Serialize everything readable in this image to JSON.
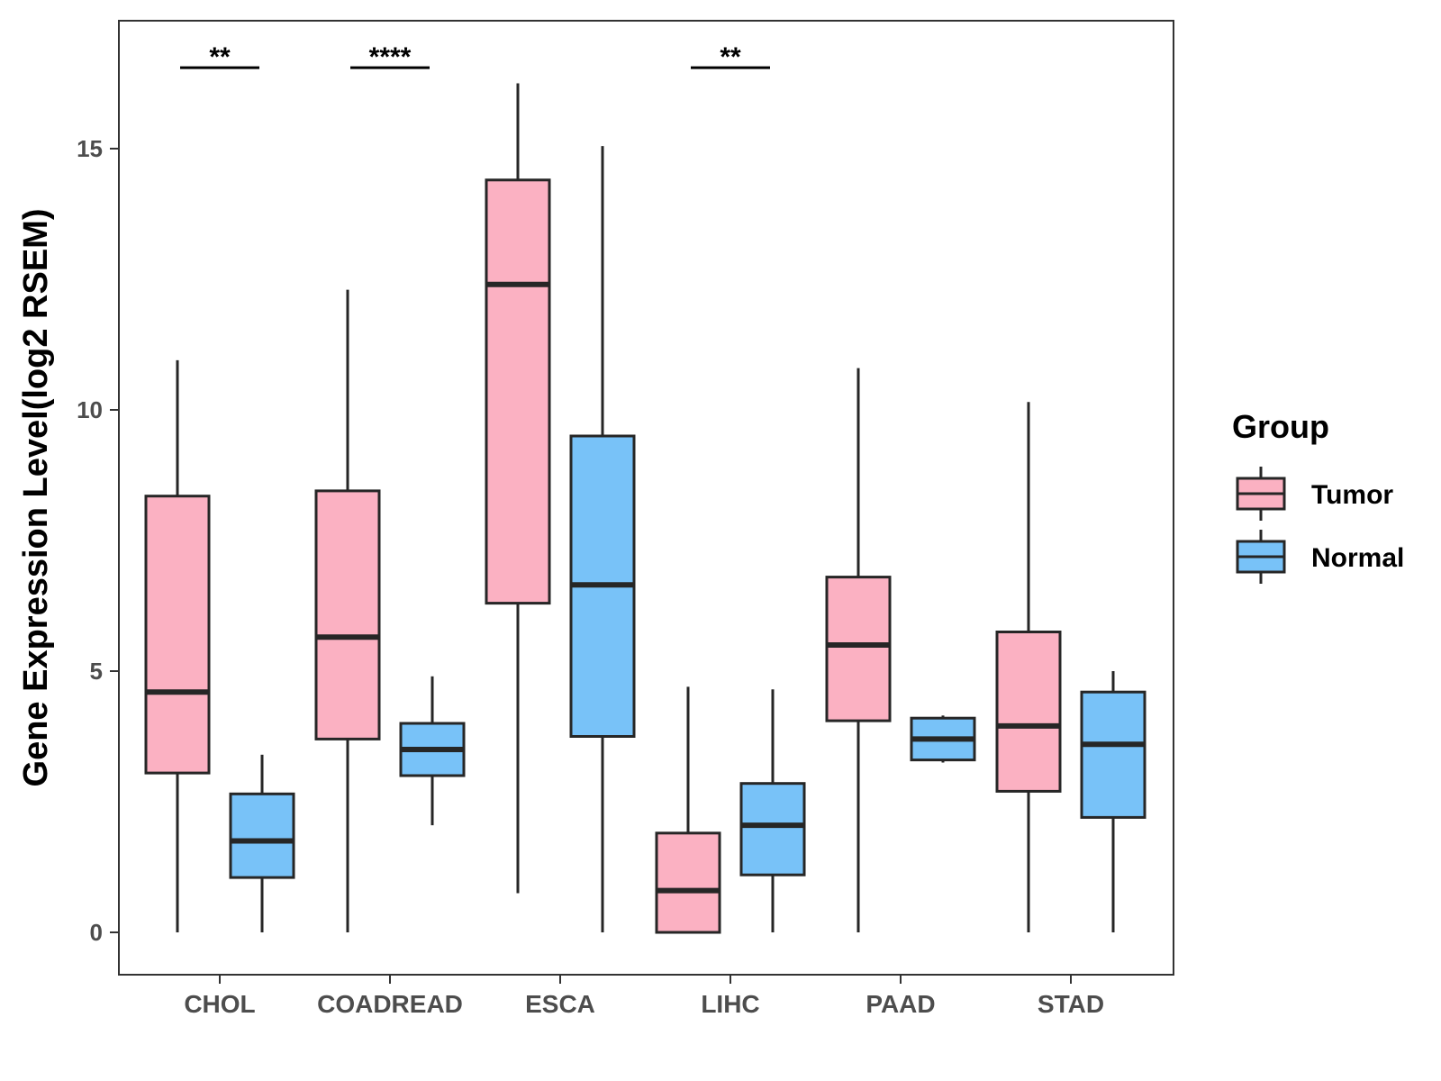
{
  "chart_data": {
    "type": "boxplot",
    "ylabel": "Gene Expression Level(log2 RSEM)",
    "xlabel": "",
    "ylim": [
      -0.8,
      17.4
    ],
    "yticks": [
      0,
      5,
      10,
      15
    ],
    "categories": [
      "CHOL",
      "COADREAD",
      "ESCA",
      "LIHC",
      "PAAD",
      "STAD"
    ],
    "legend": {
      "title": "Group",
      "position": "right",
      "entries": [
        {
          "name": "Tumor",
          "color": "#FBB1C2"
        },
        {
          "name": "Normal",
          "color": "#78C2F8"
        }
      ]
    },
    "series": [
      {
        "name": "Tumor",
        "color": "#FBB1C2",
        "boxes": [
          {
            "category": "CHOL",
            "whisker_low": 0.0,
            "q1": 3.05,
            "median": 4.6,
            "q3": 8.35,
            "whisker_high": 10.95
          },
          {
            "category": "COADREAD",
            "whisker_low": 0.0,
            "q1": 3.7,
            "median": 5.65,
            "q3": 8.45,
            "whisker_high": 12.3
          },
          {
            "category": "ESCA",
            "whisker_low": 0.75,
            "q1": 6.3,
            "median": 12.4,
            "q3": 14.4,
            "whisker_high": 16.25
          },
          {
            "category": "LIHC",
            "whisker_low": 0.0,
            "q1": 0.0,
            "median": 0.8,
            "q3": 1.9,
            "whisker_high": 4.7
          },
          {
            "category": "PAAD",
            "whisker_low": 0.0,
            "q1": 4.05,
            "median": 5.5,
            "q3": 6.8,
            "whisker_high": 10.8
          },
          {
            "category": "STAD",
            "whisker_low": 0.0,
            "q1": 2.7,
            "median": 3.95,
            "q3": 5.75,
            "whisker_high": 10.15
          }
        ]
      },
      {
        "name": "Normal",
        "color": "#78C2F8",
        "boxes": [
          {
            "category": "CHOL",
            "whisker_low": 0.0,
            "q1": 1.05,
            "median": 1.75,
            "q3": 2.65,
            "whisker_high": 3.4
          },
          {
            "category": "COADREAD",
            "whisker_low": 2.05,
            "q1": 3.0,
            "median": 3.5,
            "q3": 4.0,
            "whisker_high": 4.9
          },
          {
            "category": "ESCA",
            "whisker_low": 0.0,
            "q1": 3.75,
            "median": 6.65,
            "q3": 9.5,
            "whisker_high": 15.05
          },
          {
            "category": "LIHC",
            "whisker_low": 0.0,
            "q1": 1.1,
            "median": 2.05,
            "q3": 2.85,
            "whisker_high": 4.65
          },
          {
            "category": "PAAD",
            "whisker_low": 3.25,
            "q1": 3.3,
            "median": 3.7,
            "q3": 4.1,
            "whisker_high": 4.15
          },
          {
            "category": "STAD",
            "whisker_low": 0.0,
            "q1": 2.2,
            "median": 3.6,
            "q3": 4.6,
            "whisker_high": 5.0
          }
        ]
      }
    ],
    "annotations": [
      {
        "category": "CHOL",
        "label": "**",
        "y": 16.55
      },
      {
        "category": "COADREAD",
        "label": "****",
        "y": 16.55
      },
      {
        "category": "LIHC",
        "label": "**",
        "y": 16.55
      }
    ]
  }
}
